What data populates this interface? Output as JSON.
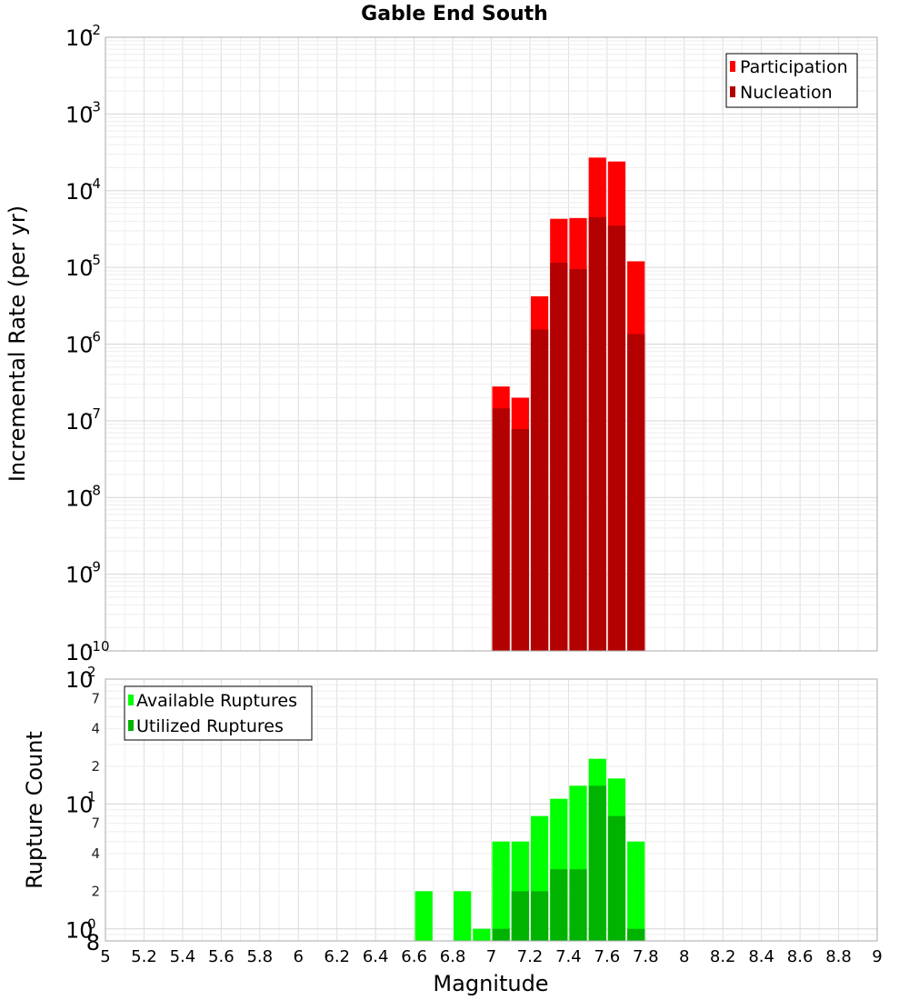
{
  "chart_data": [
    {
      "type": "bar",
      "title": "Gable End South",
      "ylabel": "Incremental Rate (per yr)",
      "xlabel": "",
      "yscale": "log",
      "xlim": [
        5,
        9
      ],
      "ylim": [
        1e-10,
        0.01
      ],
      "grid": true,
      "legend_position": "top-right",
      "bin_width": 0.1,
      "y_tick_labels": [
        {
          "base": "10",
          "exp": "-2"
        },
        {
          "base": "10",
          "exp": "-3"
        },
        {
          "base": "10",
          "exp": "-4"
        },
        {
          "base": "10",
          "exp": "-5"
        },
        {
          "base": "10",
          "exp": "-6"
        },
        {
          "base": "10",
          "exp": "-7"
        },
        {
          "base": "10",
          "exp": "-8"
        },
        {
          "base": "10",
          "exp": "-9"
        },
        {
          "base": "10",
          "exp": "-10"
        }
      ],
      "series": [
        {
          "name": "Participation",
          "color": "#ff0000",
          "x": [
            7.05,
            7.15,
            7.25,
            7.35,
            7.45,
            7.55,
            7.65,
            7.75
          ],
          "values": [
            2.8e-07,
            2e-07,
            4.2e-06,
            4.3e-05,
            4.4e-05,
            0.00027,
            0.00024,
            1.2e-05
          ]
        },
        {
          "name": "Nucleation",
          "color": "#b30000",
          "x": [
            7.05,
            7.15,
            7.25,
            7.35,
            7.45,
            7.55,
            7.65,
            7.75
          ],
          "values": [
            1.45e-07,
            7.8e-08,
            1.55e-06,
            1.15e-05,
            9.5e-06,
            4.5e-05,
            3.5e-05,
            1.35e-06
          ]
        }
      ]
    },
    {
      "type": "bar",
      "ylabel": "Rupture Count",
      "xlabel": "Magnitude",
      "yscale": "log",
      "xlim": [
        5,
        9
      ],
      "ylim": [
        0.8,
        100
      ],
      "grid": true,
      "legend_position": "top-left",
      "bin_width": 0.1,
      "x_tick_labels": [
        "5",
        "5.2",
        "5.4",
        "5.6",
        "5.8",
        "6",
        "6.2",
        "6.4",
        "6.6",
        "6.8",
        "7",
        "7.2",
        "7.4",
        "7.6",
        "7.8",
        "8",
        "8.2",
        "8.4",
        "8.6",
        "8.8",
        "9"
      ],
      "y_tick_labels": [
        {
          "base": "10",
          "exp": "2"
        },
        {
          "base": "10",
          "exp": "1"
        },
        {
          "base": "10",
          "exp": "0"
        }
      ],
      "y_minor_labels": [
        "7",
        "4",
        "2",
        "7",
        "4",
        "2",
        "8"
      ],
      "series": [
        {
          "name": "Available Ruptures",
          "color": "#00ff00",
          "x": [
            6.65,
            6.85,
            6.95,
            7.05,
            7.15,
            7.25,
            7.35,
            7.45,
            7.55,
            7.65,
            7.75
          ],
          "values": [
            2,
            2,
            1,
            5,
            5,
            8,
            11,
            14,
            23,
            16,
            5
          ]
        },
        {
          "name": "Utilized Ruptures",
          "color": "#00b300",
          "x": [
            7.05,
            7.15,
            7.25,
            7.35,
            7.45,
            7.55,
            7.65,
            7.75
          ],
          "values": [
            1,
            2,
            2,
            3,
            3,
            14,
            8,
            1
          ]
        }
      ]
    }
  ]
}
